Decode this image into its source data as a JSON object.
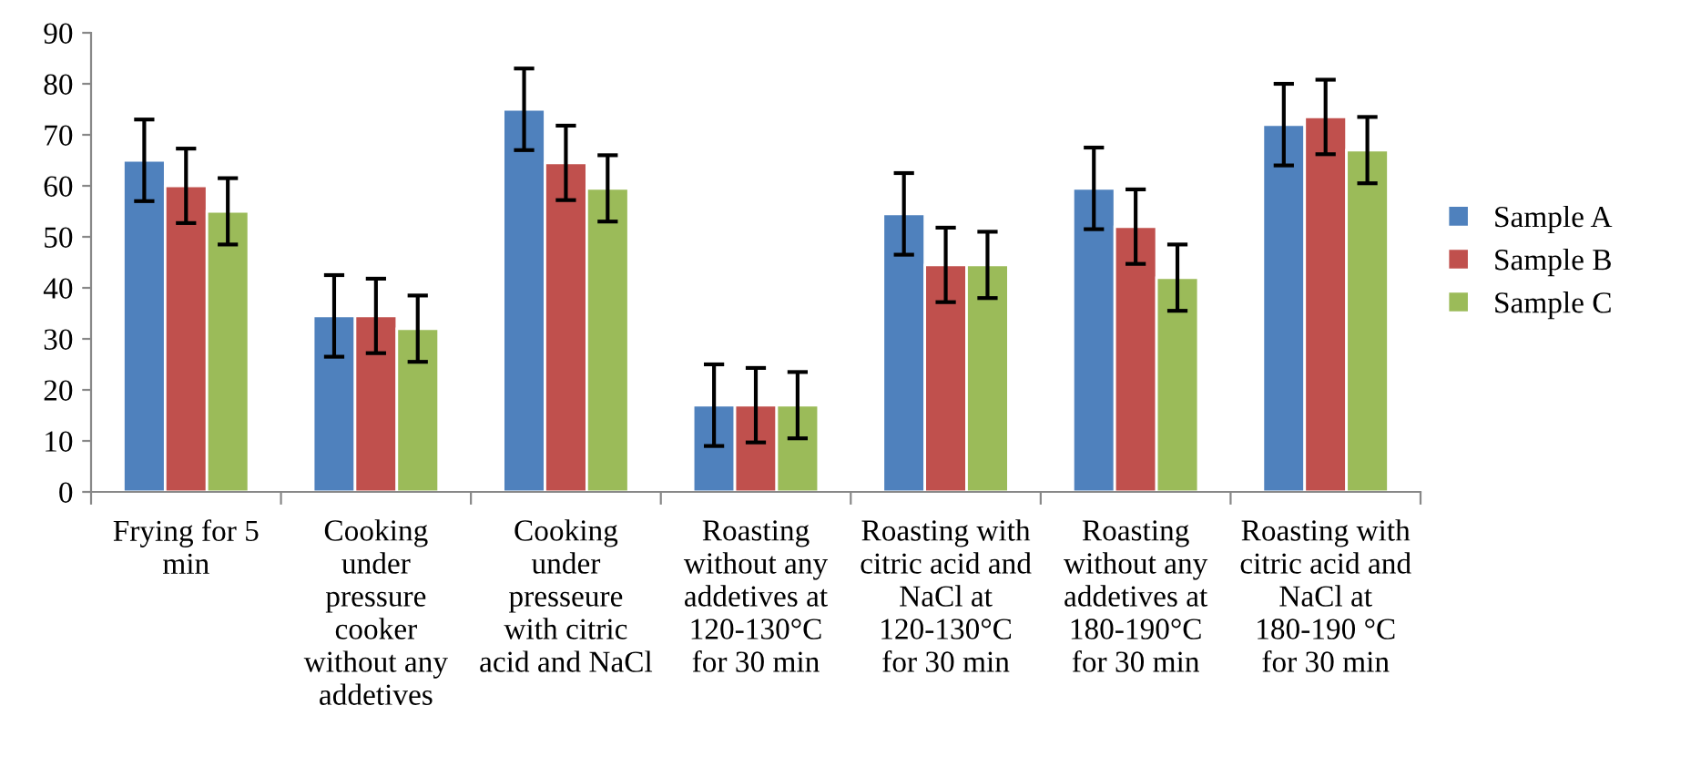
{
  "chart_data": {
    "type": "bar",
    "categories": [
      "Frying for 5 min",
      "Cooking under pressure cooker without any addetives",
      "Cooking under presseure with citric acid and NaCl",
      "Roasting without any addetives at 120-130°C for 30 min",
      "Roasting with citric acid and NaCl at 120-130°C for 30 min",
      "Roasting without any addetives at 180-190°C for 30 min",
      "Roasting with citric acid and NaCl at 180-190 °C for 30 min"
    ],
    "series": [
      {
        "name": "Sample A",
        "color": "#4f81bd",
        "values": [
          65,
          34.5,
          75,
          17,
          54.5,
          59.5,
          72
        ],
        "errors": [
          8,
          8,
          8,
          8,
          8,
          8,
          8
        ]
      },
      {
        "name": "Sample B",
        "color": "#c0504d",
        "values": [
          60,
          34.5,
          64.5,
          17,
          44.5,
          52,
          73.5
        ],
        "errors": [
          7.3,
          7.3,
          7.3,
          7.3,
          7.3,
          7.3,
          7.3
        ]
      },
      {
        "name": "Sample C",
        "color": "#9bbb59",
        "values": [
          55,
          32,
          59.5,
          17,
          44.5,
          42,
          67
        ],
        "errors": [
          6.5,
          6.5,
          6.5,
          6.5,
          6.5,
          6.5,
          6.5
        ]
      }
    ],
    "ylim": [
      0,
      90
    ],
    "yticks": [
      0,
      10,
      20,
      30,
      40,
      50,
      60,
      70,
      80,
      90
    ],
    "grid": false,
    "legend": "right"
  }
}
